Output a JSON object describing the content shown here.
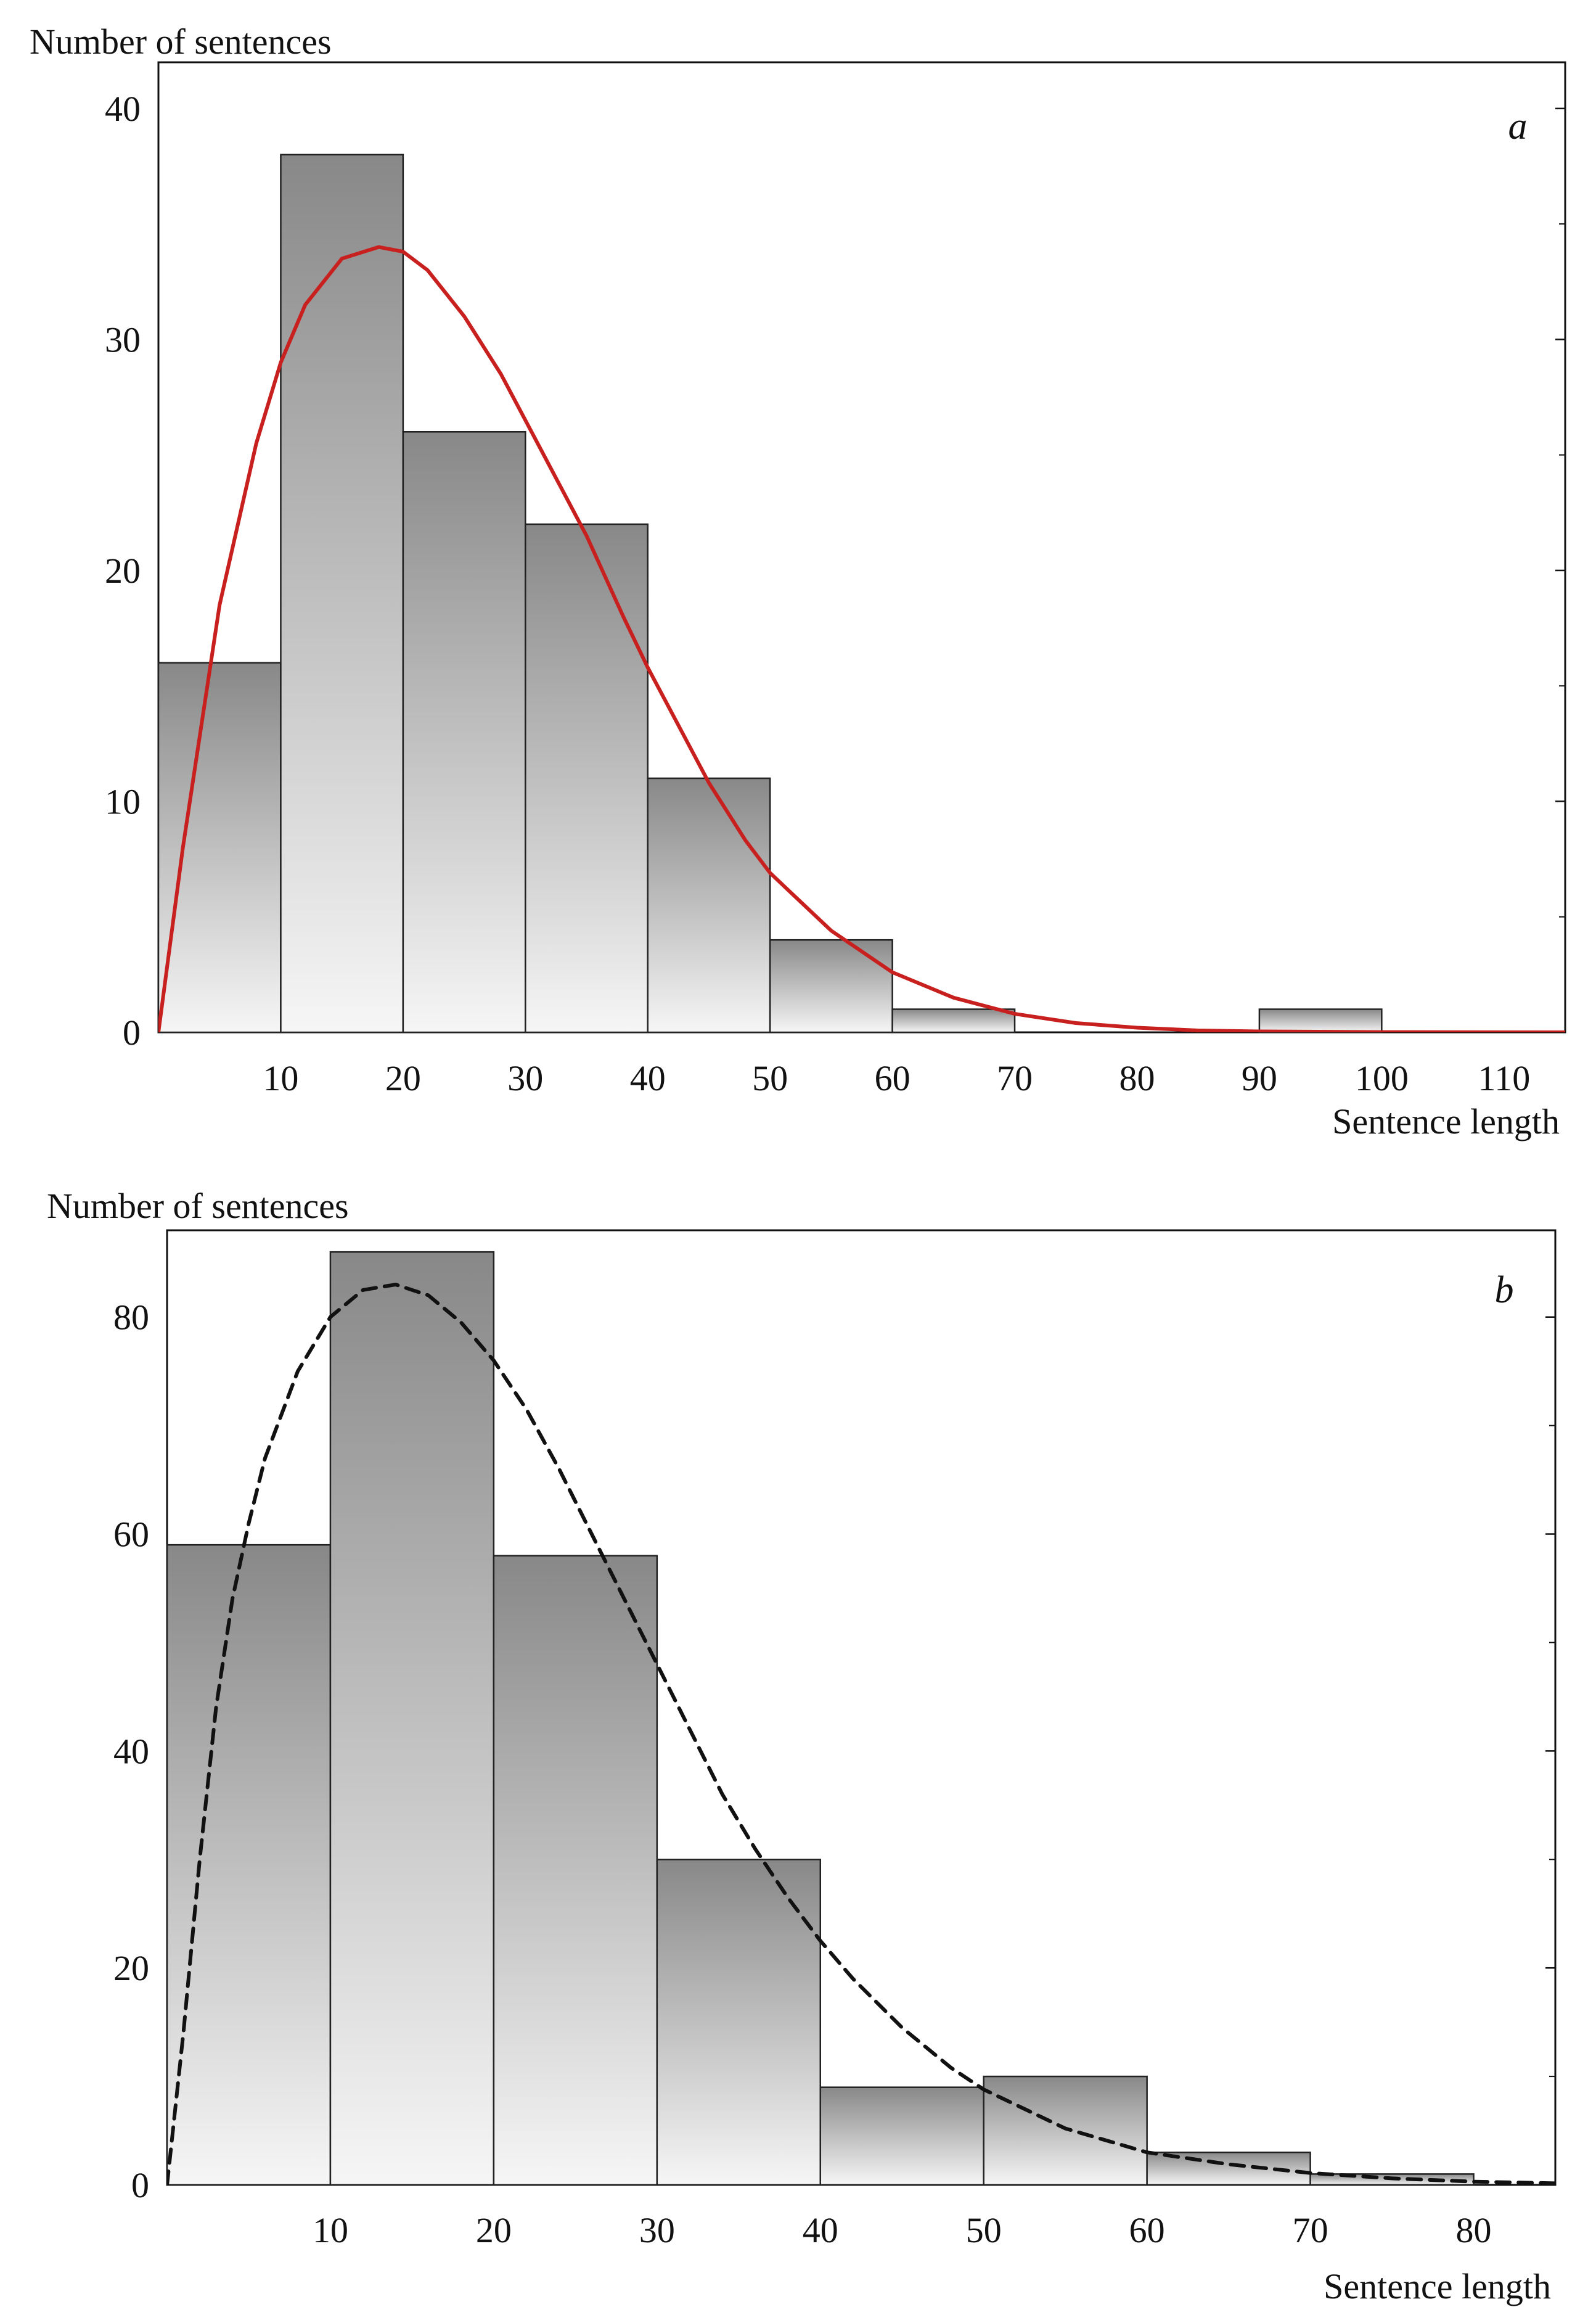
{
  "colors": {
    "bar_top_dark": "#888888",
    "bar_bottom_light": "#f6f6f6",
    "bar_stroke": "#222222",
    "fit_a": "#c8201e",
    "fit_b": "#111111"
  },
  "chart_data": [
    {
      "type": "bar",
      "panel_label": "a",
      "ylabel": "Number of sentences",
      "xlabel": "Sentence length",
      "xlim": [
        0,
        115
      ],
      "ylim": [
        0,
        42
      ],
      "xticks": [
        10,
        20,
        30,
        40,
        50,
        60,
        70,
        80,
        90,
        100,
        110
      ],
      "yticks": [
        0,
        10,
        20,
        30,
        40
      ],
      "bin_width": 10,
      "bins": [
        {
          "start": 0,
          "end": 10,
          "value": 16
        },
        {
          "start": 10,
          "end": 20,
          "value": 38
        },
        {
          "start": 20,
          "end": 30,
          "value": 26
        },
        {
          "start": 30,
          "end": 40,
          "value": 22
        },
        {
          "start": 40,
          "end": 50,
          "value": 11
        },
        {
          "start": 50,
          "end": 60,
          "value": 4
        },
        {
          "start": 60,
          "end": 70,
          "value": 1
        },
        {
          "start": 90,
          "end": 100,
          "value": 1
        }
      ],
      "fit_curve": {
        "style": "solid",
        "color": "#c8201e",
        "peak": {
          "x": 18.5,
          "y": 34
        },
        "points": [
          [
            0,
            0
          ],
          [
            2,
            8
          ],
          [
            5,
            18.5
          ],
          [
            8,
            25.5
          ],
          [
            10,
            29
          ],
          [
            12,
            31.5
          ],
          [
            15,
            33.5
          ],
          [
            18,
            34
          ],
          [
            20,
            33.8
          ],
          [
            22,
            33
          ],
          [
            25,
            31
          ],
          [
            28,
            28.5
          ],
          [
            30,
            26.5
          ],
          [
            33,
            23.5
          ],
          [
            35,
            21.5
          ],
          [
            38,
            18
          ],
          [
            40,
            15.8
          ],
          [
            43,
            12.8
          ],
          [
            45,
            10.8
          ],
          [
            48,
            8.3
          ],
          [
            50,
            6.9
          ],
          [
            55,
            4.4
          ],
          [
            60,
            2.6
          ],
          [
            65,
            1.5
          ],
          [
            70,
            0.8
          ],
          [
            75,
            0.4
          ],
          [
            80,
            0.2
          ],
          [
            85,
            0.08
          ],
          [
            90,
            0.04
          ],
          [
            100,
            0.01
          ],
          [
            115,
            0
          ]
        ]
      }
    },
    {
      "type": "bar",
      "panel_label": "b",
      "ylabel": "Number of sentences",
      "xlabel": "Sentence length",
      "xlim": [
        0,
        85
      ],
      "ylim": [
        0,
        88
      ],
      "xticks": [
        10,
        20,
        30,
        40,
        50,
        60,
        70,
        80
      ],
      "yticks": [
        0,
        20,
        40,
        60,
        80
      ],
      "bin_width": 10,
      "bins": [
        {
          "start": 0,
          "end": 10,
          "value": 59
        },
        {
          "start": 10,
          "end": 20,
          "value": 86
        },
        {
          "start": 20,
          "end": 30,
          "value": 58
        },
        {
          "start": 30,
          "end": 40,
          "value": 30
        },
        {
          "start": 40,
          "end": 50,
          "value": 9
        },
        {
          "start": 50,
          "end": 60,
          "value": 10
        },
        {
          "start": 60,
          "end": 70,
          "value": 3
        },
        {
          "start": 70,
          "end": 80,
          "value": 1
        }
      ],
      "fit_curve": {
        "style": "dashed",
        "color": "#111111",
        "peak": {
          "x": 14,
          "y": 83
        },
        "points": [
          [
            0,
            0
          ],
          [
            1,
            14
          ],
          [
            2,
            30
          ],
          [
            3,
            44
          ],
          [
            4,
            54
          ],
          [
            5,
            61
          ],
          [
            6,
            67
          ],
          [
            8,
            75
          ],
          [
            10,
            80
          ],
          [
            12,
            82.5
          ],
          [
            14,
            83
          ],
          [
            16,
            82
          ],
          [
            18,
            79.5
          ],
          [
            20,
            76
          ],
          [
            22,
            71.5
          ],
          [
            24,
            66
          ],
          [
            26,
            60
          ],
          [
            28,
            54
          ],
          [
            30,
            48
          ],
          [
            32,
            42
          ],
          [
            34,
            36
          ],
          [
            36,
            31
          ],
          [
            38,
            26.5
          ],
          [
            40,
            22.5
          ],
          [
            42,
            19
          ],
          [
            45,
            14.5
          ],
          [
            48,
            10.8
          ],
          [
            50,
            8.8
          ],
          [
            55,
            5.2
          ],
          [
            60,
            3
          ],
          [
            65,
            1.9
          ],
          [
            70,
            1.1
          ],
          [
            75,
            0.6
          ],
          [
            80,
            0.3
          ],
          [
            85,
            0.15
          ]
        ]
      }
    }
  ]
}
